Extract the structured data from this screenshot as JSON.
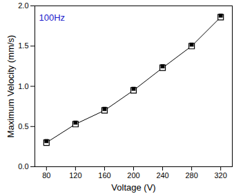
{
  "chart_data": {
    "type": "line",
    "annotations": [
      "100Hz"
    ],
    "x_label": "Voltage (V)",
    "y_label": "Maximum Velocity (mm/s)",
    "x": [
      80,
      120,
      160,
      200,
      240,
      280,
      320
    ],
    "series": [
      {
        "name": null,
        "color": "#000000",
        "marker": "square",
        "values": [
          0.3,
          0.53,
          0.7,
          0.95,
          1.23,
          1.5,
          1.86
        ]
      }
    ],
    "xlim": [
      64,
      336
    ],
    "xticks": [
      80,
      120,
      160,
      200,
      240,
      280,
      320
    ],
    "ylim": [
      0,
      2
    ],
    "yticks": [
      {
        "value": 0,
        "label": "0.0"
      },
      {
        "value": 0.5,
        "label": "0.5"
      },
      {
        "value": 1,
        "label": "1.0"
      },
      {
        "value": 1.5,
        "label": "1.5"
      },
      {
        "value": 2,
        "label": "2.0"
      }
    ],
    "grid": false
  }
}
